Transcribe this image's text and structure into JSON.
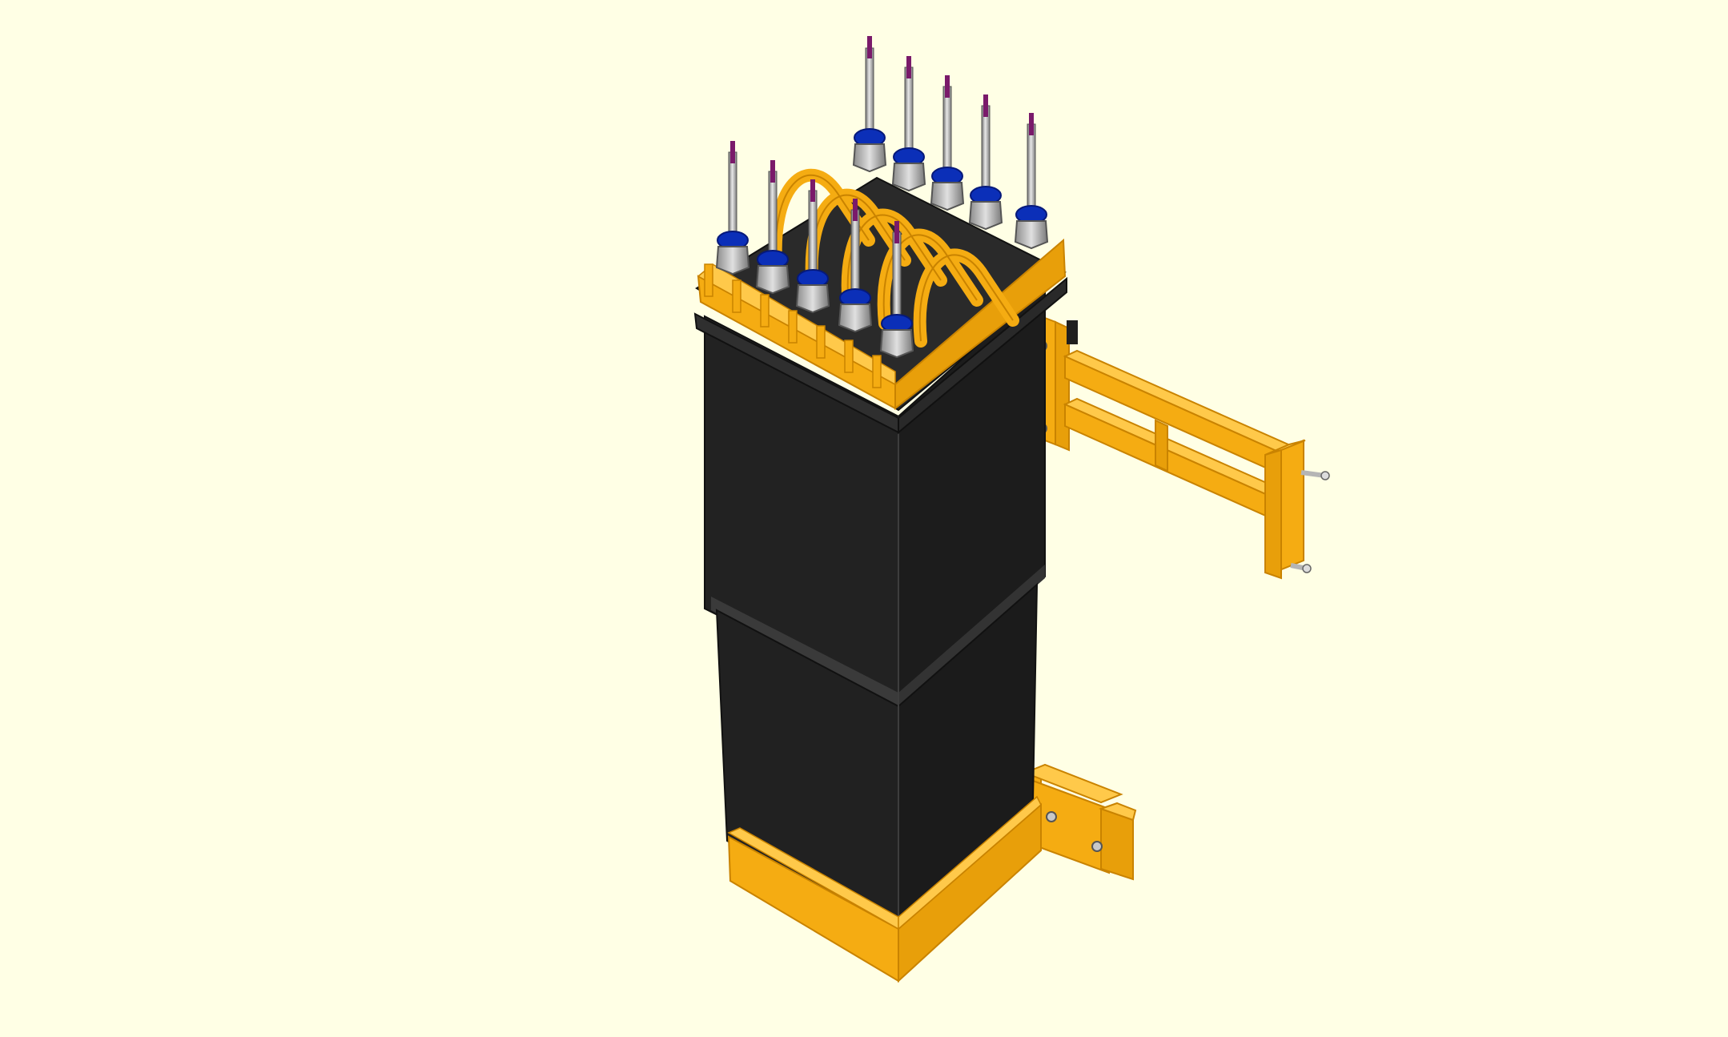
{
  "viewer": {
    "background_color": "#ffffe5",
    "model": {
      "colors": {
        "body_dark": "#1f1f1f",
        "body_mid": "#2b2b2b",
        "body_band": "#3a3a3a",
        "frame_orange": "#f5ac12",
        "frame_orange_light": "#ffc94a",
        "frame_orange_dark": "#c98300",
        "fitting_blue": "#0b2fb8",
        "fitting_silver": "#c8c8c8",
        "rod_steel": "#9a9a9a",
        "tip_purple": "#7a1a6a"
      },
      "icon": "3d-model-icon"
    }
  }
}
